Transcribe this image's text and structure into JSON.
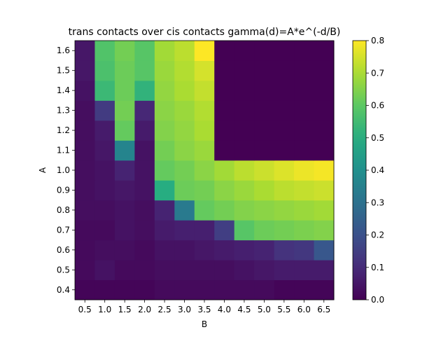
{
  "chart_data": {
    "type": "heatmap",
    "title": "trans contacts over cis contacts  gamma(d)=A*e^(-d/B)",
    "xlabel": "B",
    "ylabel": "A",
    "x": [
      "0.5",
      "1.0",
      "1.5",
      "2.0",
      "2.5",
      "3.0",
      "3.5",
      "4.0",
      "4.5",
      "5.0",
      "5.5",
      "6.0",
      "6.5"
    ],
    "y": [
      "0.4",
      "0.5",
      "0.6",
      "0.7",
      "0.8",
      "0.9",
      "1.0",
      "1.1",
      "1.2",
      "1.3",
      "1.4",
      "1.5",
      "1.6"
    ],
    "values": [
      [
        0.01,
        0.01,
        0.01,
        0.01,
        0.02,
        0.02,
        0.02,
        0.02,
        0.02,
        0.02,
        0.01,
        0.01,
        0.01
      ],
      [
        0.02,
        0.04,
        0.02,
        0.02,
        0.03,
        0.03,
        0.03,
        0.03,
        0.04,
        0.05,
        0.06,
        0.06,
        0.06
      ],
      [
        0.02,
        0.03,
        0.03,
        0.02,
        0.04,
        0.04,
        0.05,
        0.06,
        0.07,
        0.08,
        0.12,
        0.13,
        0.22
      ],
      [
        0.02,
        0.02,
        0.04,
        0.03,
        0.06,
        0.07,
        0.07,
        0.15,
        0.59,
        0.62,
        0.63,
        0.64,
        0.65
      ],
      [
        0.03,
        0.03,
        0.04,
        0.03,
        0.08,
        0.33,
        0.61,
        0.63,
        0.65,
        0.66,
        0.67,
        0.68,
        0.69
      ],
      [
        0.03,
        0.04,
        0.05,
        0.04,
        0.5,
        0.62,
        0.63,
        0.66,
        0.68,
        0.7,
        0.72,
        0.73,
        0.74
      ],
      [
        0.03,
        0.04,
        0.08,
        0.04,
        0.61,
        0.63,
        0.66,
        0.69,
        0.72,
        0.74,
        0.76,
        0.78,
        0.79
      ],
      [
        0.03,
        0.05,
        0.36,
        0.04,
        0.63,
        0.66,
        0.68,
        0.0,
        0.0,
        0.0,
        0.0,
        0.0,
        0.0
      ],
      [
        0.03,
        0.06,
        0.61,
        0.06,
        0.65,
        0.67,
        0.7,
        0.0,
        0.0,
        0.0,
        0.0,
        0.0,
        0.0
      ],
      [
        0.03,
        0.14,
        0.63,
        0.09,
        0.66,
        0.68,
        0.71,
        0.0,
        0.0,
        0.0,
        0.0,
        0.0,
        0.0
      ],
      [
        0.04,
        0.54,
        0.62,
        0.52,
        0.67,
        0.7,
        0.73,
        0.0,
        0.0,
        0.0,
        0.0,
        0.0,
        0.0
      ],
      [
        0.05,
        0.57,
        0.62,
        0.59,
        0.68,
        0.71,
        0.75,
        0.0,
        0.0,
        0.0,
        0.0,
        0.0,
        0.0
      ],
      [
        0.05,
        0.58,
        0.63,
        0.59,
        0.69,
        0.72,
        0.8,
        0.0,
        0.0,
        0.0,
        0.0,
        0.0,
        0.0
      ]
    ],
    "vmin": 0.0,
    "vmax": 0.8,
    "colormap": "viridis",
    "colorbar_ticks": [
      "0.0",
      "0.1",
      "0.2",
      "0.3",
      "0.4",
      "0.5",
      "0.6",
      "0.7",
      "0.8"
    ],
    "grid": false
  }
}
